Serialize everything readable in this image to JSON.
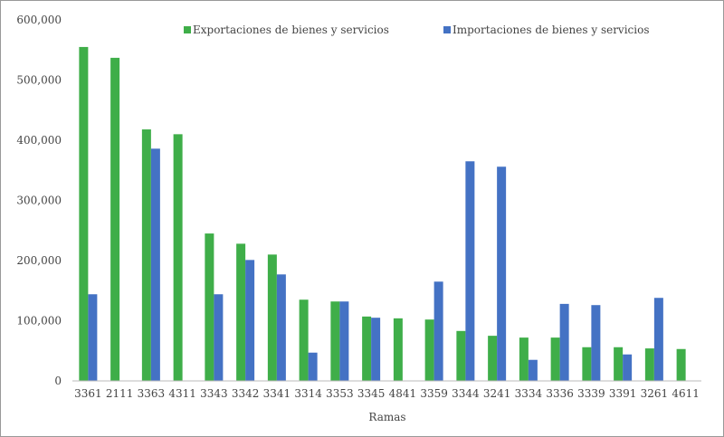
{
  "chart_data": {
    "type": "bar",
    "title": "",
    "xlabel": "Ramas",
    "ylabel": "",
    "ylim": [
      0,
      600000
    ],
    "yticks": [
      "0",
      "100,000",
      "200,000",
      "300,000",
      "400,000",
      "500,000",
      "600,000"
    ],
    "grid": false,
    "legend_position": "top",
    "categories": [
      "3361",
      "2111",
      "3363",
      "4311",
      "3343",
      "3342",
      "3341",
      "3314",
      "3353",
      "3345",
      "4841",
      "3359",
      "3344",
      "3241",
      "3334",
      "3336",
      "3339",
      "3391",
      "3261",
      "4611"
    ],
    "series": [
      {
        "name": "Exportaciones de bienes y servicios",
        "color": "#3fae49",
        "values": [
          555000,
          537000,
          418000,
          410000,
          245000,
          228000,
          210000,
          135000,
          132000,
          107000,
          104000,
          102000,
          83000,
          75000,
          72000,
          72000,
          56000,
          56000,
          54000,
          53000
        ]
      },
      {
        "name": "Importaciones de bienes y servicios",
        "color": "#4472c4",
        "values": [
          144000,
          0,
          386000,
          0,
          144000,
          201000,
          177000,
          47000,
          132000,
          105000,
          0,
          165000,
          365000,
          356000,
          35000,
          128000,
          126000,
          44000,
          138000,
          0
        ]
      }
    ]
  }
}
